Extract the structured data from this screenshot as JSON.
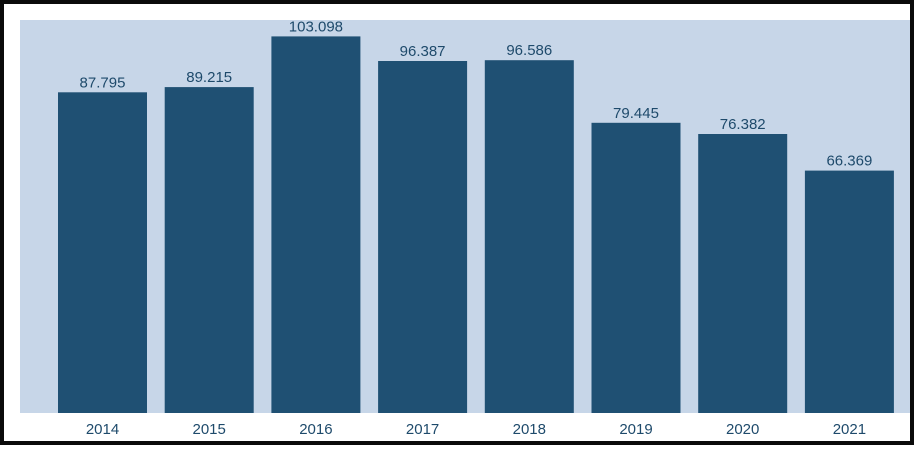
{
  "colors": {
    "plot_background": "#c7d6e8",
    "bar_fill": "#1f5073",
    "text": "#1e4a6b",
    "frame": "#0a0a0a"
  },
  "chart_data": {
    "type": "bar",
    "title": "",
    "xlabel": "",
    "ylabel": "",
    "categories": [
      "2014",
      "2015",
      "2016",
      "2017",
      "2018",
      "2019",
      "2020",
      "2021"
    ],
    "values": [
      87.795,
      89.215,
      103.098,
      96.387,
      96.586,
      79.445,
      76.382,
      66.369
    ],
    "value_labels": [
      "87.795",
      "89.215",
      "103.098",
      "96.387",
      "96.586",
      "79.445",
      "76.382",
      "66.369"
    ],
    "ylim": [
      0,
      107.6
    ],
    "grid": false,
    "legend": "none"
  }
}
